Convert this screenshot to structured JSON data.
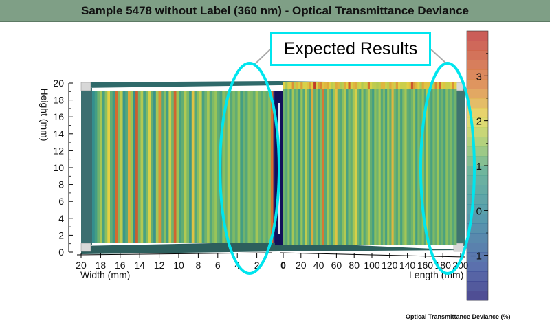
{
  "title": "Sample 5478 without Label (360 nm) - Optical Transmittance Deviance",
  "callout": "Expected Results",
  "colorbar_label": "Optical Transmittance Deviance (%)",
  "colors": {
    "title_bar": "#7f9f86",
    "highlight": "#00e5ee",
    "low": "#1a1570",
    "high": "#c0302c"
  },
  "chart_data": {
    "type": "heatmap",
    "title": "Sample 5478 without Label (360 nm) - Optical Transmittance Deviance",
    "y_axis": {
      "label": "Height (mm)",
      "range": [
        0,
        20
      ],
      "ticks": [
        0,
        2,
        4,
        6,
        8,
        10,
        12,
        14,
        16,
        18,
        20
      ]
    },
    "width_axis": {
      "label": "Width (mm)",
      "range": [
        20,
        0
      ],
      "ticks": [
        20,
        18,
        16,
        14,
        12,
        10,
        8,
        6,
        4,
        2
      ]
    },
    "length_axis": {
      "label": "Length (mm)",
      "range": [
        0,
        200
      ],
      "ticks": [
        0,
        20,
        40,
        60,
        80,
        100,
        120,
        140,
        160,
        180,
        200
      ]
    },
    "colorbar": {
      "label": "Optical Transmittance Deviance (%)",
      "range": [
        -2,
        4
      ],
      "ticks": [
        -1,
        0,
        1,
        2,
        3
      ]
    },
    "stripes_width_face": [
      0.3,
      0.8,
      1.2,
      1.6,
      0.9,
      1.4,
      2.1,
      1.1,
      0.7,
      3.0,
      1.3,
      1.8,
      0.6,
      1.0,
      2.4,
      1.5,
      0.4,
      3.2,
      1.2,
      1.7,
      0.9,
      1.3,
      2.0,
      1.1,
      0.5,
      1.6,
      2.6,
      1.0,
      1.4,
      0.8,
      1.9,
      1.2,
      3.1,
      1.5,
      0.9,
      1.1,
      1.7,
      1.3,
      0.6,
      2.2,
      1.0,
      1.4,
      1.8,
      0.9,
      1.2,
      1.6,
      1.0,
      1.3,
      1.5,
      1.1,
      0.9,
      1.4,
      1.2,
      1.7,
      1.0,
      1.3,
      1.1,
      1.5,
      0.8,
      1.2,
      1.0,
      1.4,
      1.3,
      1.1,
      1.6,
      1.2,
      1.0,
      1.3,
      1.1,
      1.4,
      2.9,
      -1.9,
      -1.8
    ],
    "stripes_length_face": [
      1.2,
      1.0,
      1.4,
      0.9,
      1.6,
      1.1,
      1.3,
      0.7,
      1.5,
      1.0,
      1.8,
      1.2,
      0.8,
      2.4,
      1.1,
      1.4,
      0.9,
      1.3,
      2.8,
      1.0,
      1.6,
      1.2,
      0.8,
      1.5,
      2.2,
      1.1,
      1.0,
      1.4,
      1.7,
      0.9,
      1.3,
      1.1,
      1.6,
      2.0,
      1.2,
      0.9,
      1.5,
      1.0,
      1.3,
      1.8,
      1.1,
      0.8,
      1.4,
      1.2,
      1.6,
      1.0,
      1.3,
      0.9,
      1.5,
      1.1,
      2.3,
      1.2,
      1.0,
      1.4,
      0.9,
      1.3,
      1.6,
      1.1,
      1.0,
      1.2,
      1.5,
      0.8,
      1.3,
      1.1,
      1.4,
      1.0,
      1.7,
      1.2,
      0.9,
      1.3,
      1.1,
      1.5,
      1.0,
      1.2,
      0.9,
      1.4,
      1.1,
      1.3,
      1.0,
      1.2
    ]
  }
}
